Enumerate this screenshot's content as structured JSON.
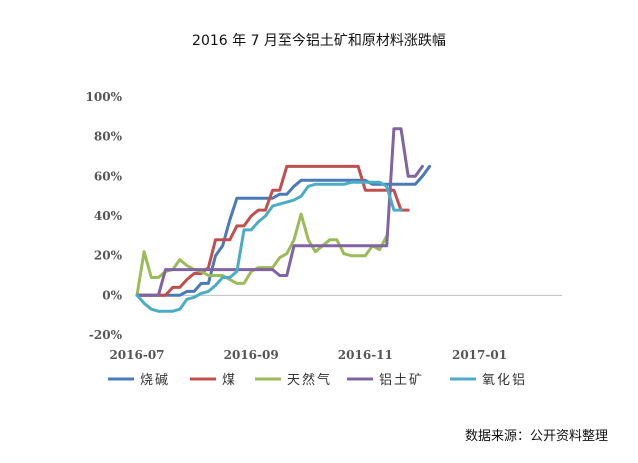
{
  "chart_data": {
    "type": "line",
    "title": "2016 年 7 月至今铝土矿和原材料涨跌幅",
    "xlabel": "",
    "ylabel": "",
    "ylim": [
      -0.2,
      1.0
    ],
    "y_ticks": [
      {
        "value": 1.0,
        "label": "100%"
      },
      {
        "value": 0.8,
        "label": "80%"
      },
      {
        "value": 0.6,
        "label": "60%"
      },
      {
        "value": 0.4,
        "label": "40%"
      },
      {
        "value": 0.2,
        "label": "20%"
      },
      {
        "value": 0.0,
        "label": "0%"
      },
      {
        "value": -0.2,
        "label": "-20%"
      }
    ],
    "x_ticks": [
      {
        "index": 0,
        "label": "2016-07"
      },
      {
        "index": 16,
        "label": "2016-09"
      },
      {
        "index": 32,
        "label": "2016-11"
      },
      {
        "index": 48,
        "label": "2017-01"
      }
    ],
    "point_count": 60,
    "legend_position": "bottom",
    "grid": false,
    "series": [
      {
        "name": "烧碱",
        "color": "#4a7ab8",
        "values": [
          0,
          0,
          0,
          0,
          0,
          0,
          0,
          0.02,
          0.02,
          0.06,
          0.06,
          0.2,
          0.25,
          0.38,
          0.49,
          0.49,
          0.49,
          0.49,
          0.49,
          0.49,
          0.51,
          0.51,
          0.55,
          0.58,
          0.58,
          0.58,
          0.58,
          0.58,
          0.58,
          0.58,
          0.58,
          0.58,
          0.58,
          0.56,
          0.56,
          0.56,
          0.56,
          0.56,
          0.56,
          0.56,
          0.6,
          0.65
        ]
      },
      {
        "name": "煤",
        "color": "#c0504d",
        "values": [
          0,
          0,
          0,
          0,
          0,
          0.04,
          0.04,
          0.08,
          0.11,
          0.11,
          0.14,
          0.28,
          0.28,
          0.28,
          0.35,
          0.35,
          0.4,
          0.43,
          0.43,
          0.53,
          0.53,
          0.65,
          0.65,
          0.65,
          0.65,
          0.65,
          0.65,
          0.65,
          0.65,
          0.65,
          0.65,
          0.65,
          0.53,
          0.53,
          0.53,
          0.53,
          0.53,
          0.43,
          0.43
        ]
      },
      {
        "name": "天然气",
        "color": "#9bbb59",
        "values": [
          0,
          0.22,
          0.09,
          0.09,
          0.12,
          0.13,
          0.18,
          0.15,
          0.13,
          0.12,
          0.1,
          0.1,
          0.1,
          0.08,
          0.06,
          0.06,
          0.12,
          0.14,
          0.14,
          0.14,
          0.19,
          0.21,
          0.28,
          0.41,
          0.28,
          0.22,
          0.25,
          0.28,
          0.28,
          0.21,
          0.2,
          0.2,
          0.2,
          0.25,
          0.23,
          0.3
        ]
      },
      {
        "name": "铝土矿",
        "color": "#8064a2",
        "values": [
          0,
          0,
          0,
          0,
          0.13,
          0.13,
          0.13,
          0.13,
          0.13,
          0.13,
          0.13,
          0.13,
          0.13,
          0.13,
          0.13,
          0.13,
          0.13,
          0.13,
          0.13,
          0.13,
          0.1,
          0.1,
          0.25,
          0.25,
          0.25,
          0.25,
          0.25,
          0.25,
          0.25,
          0.25,
          0.25,
          0.25,
          0.25,
          0.25,
          0.25,
          0.25,
          0.84,
          0.84,
          0.6,
          0.6,
          0.65
        ]
      },
      {
        "name": "氧化铝",
        "color": "#4bacc6",
        "values": [
          0,
          -0.04,
          -0.07,
          -0.08,
          -0.08,
          -0.08,
          -0.07,
          -0.02,
          -0.01,
          0.01,
          0.02,
          0.05,
          0.09,
          0.09,
          0.12,
          0.33,
          0.33,
          0.37,
          0.4,
          0.45,
          0.46,
          0.47,
          0.48,
          0.5,
          0.55,
          0.56,
          0.56,
          0.56,
          0.56,
          0.56,
          0.57,
          0.57,
          0.57,
          0.57,
          0.57,
          0.55,
          0.43,
          0.43
        ]
      }
    ]
  },
  "source": "数据来源：公开资料整理"
}
